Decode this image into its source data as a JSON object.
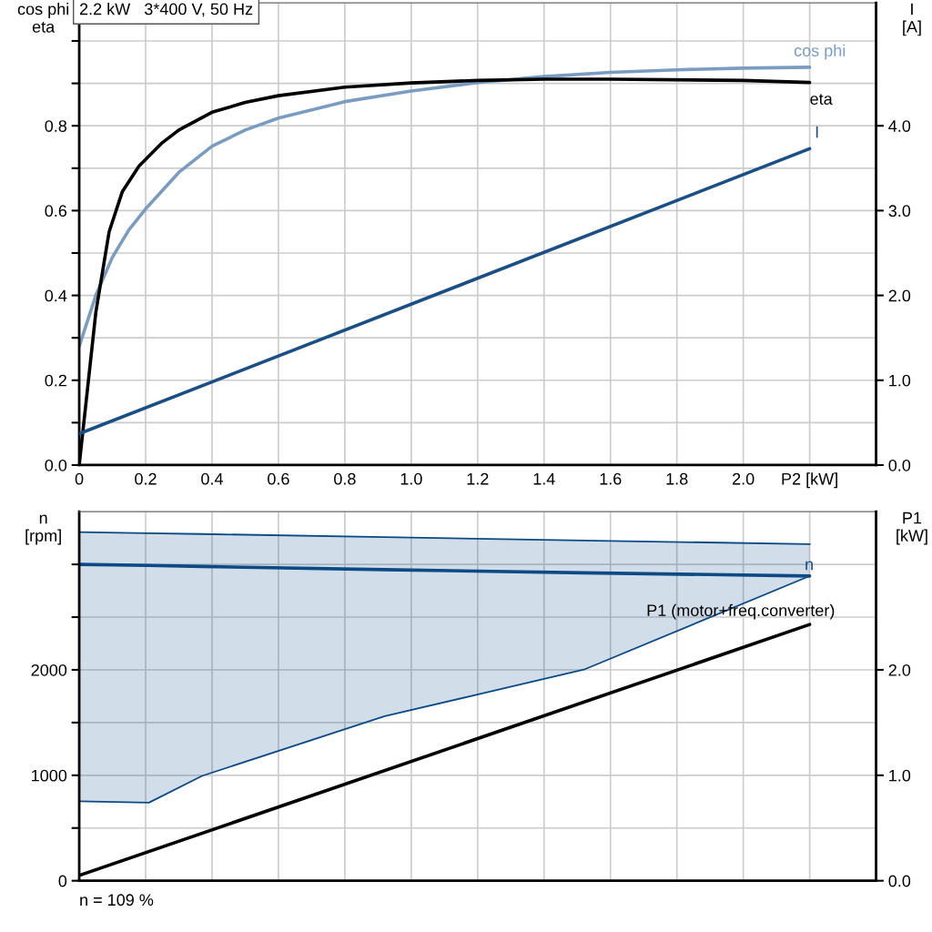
{
  "chart_data": [
    {
      "type": "line",
      "title": "2.2 kW   3*400 V, 50 Hz",
      "ylabel": "cos phi\neta",
      "y2label": "I\n[A]",
      "xlim": [
        0,
        2.4
      ],
      "xticks": [
        0,
        0.2,
        0.4,
        0.6,
        0.8,
        {
          "value": 1,
          "label": "1.0"
        },
        1.2,
        1.4,
        1.6,
        1.8,
        {
          "value": 2,
          "label": "2.0"
        },
        {
          "value": 2.2,
          "label": "P2 [kW]"
        }
      ],
      "ylim": [
        0,
        1.09
      ],
      "yticks": [
        {
          "value": 0,
          "label": "0.0"
        },
        {
          "value": 0.1,
          "label": null
        },
        0.2,
        {
          "value": 0.3,
          "label": null
        },
        0.4,
        {
          "value": 0.5,
          "label": null
        },
        0.6,
        {
          "value": 0.7,
          "label": null
        },
        0.8,
        {
          "value": 0.9,
          "label": null
        },
        {
          "value": 1.0,
          "label": null
        }
      ],
      "y2lim": [
        0,
        5.45
      ],
      "y2ticks": [
        {
          "value": 0,
          "label": "0.0"
        },
        {
          "value": 1,
          "label": "1.0"
        },
        {
          "value": 2,
          "label": "2.0"
        },
        {
          "value": 3,
          "label": "3.0"
        },
        {
          "value": 4,
          "label": "4.0"
        }
      ],
      "grid": true,
      "legend": false,
      "series": [
        {
          "name": "cos phi",
          "color": "#7a9cc0",
          "x": [
            0,
            0.05,
            0.1,
            0.15,
            0.2,
            0.3,
            0.4,
            0.5,
            0.6,
            0.8,
            1.0,
            1.2,
            1.4,
            1.6,
            1.8,
            2.0,
            2.2
          ],
          "values": [
            0.28,
            0.4,
            0.49,
            0.555,
            0.604,
            0.69,
            0.752,
            0.79,
            0.818,
            0.857,
            0.882,
            0.902,
            0.916,
            0.926,
            0.932,
            0.936,
            0.938
          ]
        },
        {
          "name": "eta",
          "color": "#000000",
          "x": [
            0,
            0.05,
            0.09,
            0.13,
            0.18,
            0.25,
            0.3,
            0.4,
            0.5,
            0.6,
            0.8,
            1.0,
            1.2,
            1.4,
            1.6,
            2.0,
            2.2
          ],
          "values": [
            0.0,
            0.36,
            0.55,
            0.645,
            0.705,
            0.76,
            0.79,
            0.832,
            0.855,
            0.871,
            0.891,
            0.901,
            0.907,
            0.91,
            0.91,
            0.907,
            0.902
          ]
        },
        {
          "name": "I",
          "color": "#1a4f86",
          "axis": "y2",
          "x": [
            0,
            2.2
          ],
          "values": [
            0.37,
            3.73
          ]
        }
      ]
    },
    {
      "type": "line",
      "ylabel": "n\n[rpm]",
      "y2label": "P1\n[kW]",
      "xlim": [
        0,
        2.4
      ],
      "xticks": [
        0,
        0.2,
        0.4,
        0.6,
        0.8,
        1.0,
        1.2,
        1.4,
        1.6,
        1.8,
        2.0,
        2.2
      ],
      "tick_labels": "y",
      "ylim": [
        0,
        3500
      ],
      "yticks": [
        0,
        {
          "value": 500,
          "label": null
        },
        1000,
        {
          "value": 1500,
          "label": null
        },
        2000,
        {
          "value": 2500,
          "label": null
        },
        {
          "value": 3000,
          "label": null
        }
      ],
      "y2lim": [
        0,
        3.5
      ],
      "y2ticks": [
        {
          "value": 0,
          "label": "0.0"
        },
        {
          "value": 1,
          "label": "1.0"
        },
        {
          "value": 2,
          "label": "2.0"
        }
      ],
      "grid": true,
      "legend": false,
      "annotations": [
        "n = 109 %"
      ],
      "series": [
        {
          "name": "n",
          "color": "#0b4a85",
          "x": [
            0,
            0.21,
            0.37,
            0.92,
            1.52,
            2.2
          ],
          "values": [
            3000,
            2990,
            2980,
            2950,
            2920,
            2890
          ],
          "lower": [
            753,
            741,
            994,
            1560,
            2002,
            2890
          ],
          "upper": [
            3307,
            3296,
            3288,
            3259,
            3227,
            3192
          ]
        },
        {
          "name": "P1 (motor+freq.converter)",
          "color": "#000000",
          "axis": "y2",
          "x": [
            0,
            2.2
          ],
          "values": [
            0.05,
            2.43
          ]
        }
      ]
    }
  ]
}
